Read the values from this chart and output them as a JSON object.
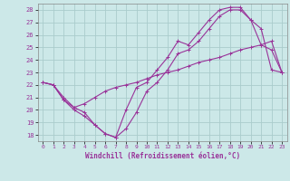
{
  "xlabel": "Windchill (Refroidissement éolien,°C)",
  "bg_color": "#cce8e8",
  "grid_color": "#aacccc",
  "line_color": "#993399",
  "xlim": [
    -0.5,
    23.5
  ],
  "ylim": [
    17.5,
    28.5
  ],
  "xticks": [
    0,
    1,
    2,
    3,
    4,
    5,
    6,
    7,
    8,
    9,
    10,
    11,
    12,
    13,
    14,
    15,
    16,
    17,
    18,
    19,
    20,
    21,
    22,
    23
  ],
  "yticks": [
    18,
    19,
    20,
    21,
    22,
    23,
    24,
    25,
    26,
    27,
    28
  ],
  "line1_x": [
    0,
    1,
    2,
    3,
    4,
    5,
    6,
    7,
    8,
    9,
    10,
    11,
    12,
    13,
    14,
    15,
    16,
    17,
    18,
    19,
    20,
    21,
    22,
    23
  ],
  "line1_y": [
    22.2,
    22.0,
    20.8,
    20.0,
    19.5,
    18.8,
    18.1,
    17.8,
    18.5,
    19.8,
    21.5,
    22.2,
    23.2,
    24.5,
    24.8,
    25.5,
    26.5,
    27.5,
    28.0,
    28.0,
    27.2,
    26.5,
    23.2,
    23.0
  ],
  "line2_x": [
    0,
    1,
    2,
    3,
    4,
    5,
    6,
    7,
    8,
    9,
    10,
    11,
    12,
    13,
    14,
    15,
    16,
    17,
    18,
    19,
    20,
    21,
    22,
    23
  ],
  "line2_y": [
    22.2,
    22.0,
    20.8,
    20.2,
    19.8,
    18.8,
    18.1,
    17.8,
    20.0,
    21.8,
    22.2,
    23.2,
    24.2,
    25.5,
    25.2,
    26.2,
    27.2,
    28.0,
    28.2,
    28.2,
    27.2,
    25.2,
    24.8,
    23.0
  ],
  "line3_x": [
    0,
    1,
    2,
    3,
    4,
    5,
    6,
    7,
    8,
    9,
    10,
    11,
    12,
    13,
    14,
    15,
    16,
    17,
    18,
    19,
    20,
    21,
    22,
    23
  ],
  "line3_y": [
    22.2,
    22.0,
    21.0,
    20.2,
    20.5,
    21.0,
    21.5,
    21.8,
    22.0,
    22.2,
    22.5,
    22.8,
    23.0,
    23.2,
    23.5,
    23.8,
    24.0,
    24.2,
    24.5,
    24.8,
    25.0,
    25.2,
    25.5,
    23.0
  ]
}
